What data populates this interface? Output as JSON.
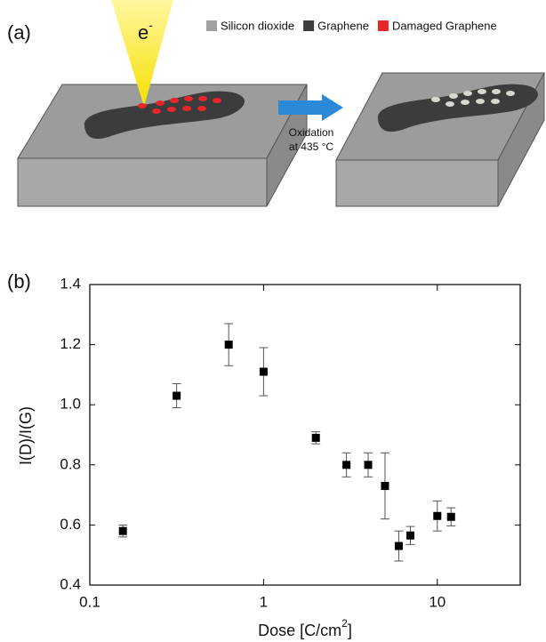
{
  "panel_a": {
    "panel_label": "(a)",
    "electron": {
      "text": "e",
      "superscript": "-"
    },
    "legend": [
      {
        "label": "Silicon dioxide",
        "color": "#a0a0a0"
      },
      {
        "label": "Graphene",
        "color": "#3c3c3c"
      },
      {
        "label": "Damaged Graphene",
        "color": "#e8262a"
      }
    ],
    "arrow_label": [
      "Oxidation",
      "at 435 °C"
    ]
  },
  "chart_data": {
    "type": "scatter",
    "panel_label": "(b)",
    "xlabel": [
      "Dose [C/cm",
      "2",
      "]"
    ],
    "ylabel": "I(D)/I(G)",
    "xscale": "log",
    "xlim": [
      0.1,
      30
    ],
    "ylim": [
      0.4,
      1.4
    ],
    "xticks": [
      0.1,
      1,
      10
    ],
    "yticks": [
      0.4,
      0.6,
      0.8,
      {
        "value": 1,
        "label": "1.0"
      },
      1.2,
      1.4
    ],
    "series": [
      {
        "color": "#000000",
        "x": [
          0.155,
          0.316,
          0.63,
          1.0,
          2.0,
          3.0,
          4.0,
          5.0,
          6.0,
          7.0,
          10.0,
          12.0
        ],
        "values": [
          0.58,
          1.03,
          1.2,
          1.11,
          0.89,
          0.8,
          0.8,
          0.73,
          0.53,
          0.565,
          0.63,
          0.627
        ],
        "errors": [
          0.02,
          0.04,
          0.07,
          0.08,
          0.02,
          0.04,
          0.04,
          0.11,
          0.05,
          0.03,
          0.05,
          0.03
        ]
      }
    ]
  }
}
